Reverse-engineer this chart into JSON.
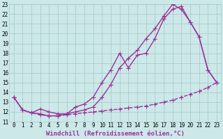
{
  "xlabel": "Windchill (Refroidissement éolien,°C)",
  "background_color": "#cce8e8",
  "grid_color": "#aacccc",
  "line_color": "#993399",
  "xlim": [
    -0.5,
    23.5
  ],
  "ylim": [
    11,
    23
  ],
  "yticks": [
    11,
    12,
    13,
    14,
    15,
    16,
    17,
    18,
    19,
    20,
    21,
    22,
    23
  ],
  "xticks": [
    0,
    1,
    2,
    3,
    4,
    5,
    6,
    7,
    8,
    9,
    10,
    11,
    12,
    13,
    14,
    15,
    16,
    17,
    18,
    19,
    20,
    21,
    22,
    23
  ],
  "line1_x": [
    0,
    1,
    2,
    3,
    4,
    5,
    6,
    7,
    8,
    9,
    10,
    11,
    12,
    13,
    14,
    15,
    16,
    17,
    18,
    19,
    20,
    21,
    22,
    23
  ],
  "line1_y": [
    13.5,
    12.2,
    11.9,
    11.7,
    11.6,
    11.6,
    11.7,
    11.8,
    11.9,
    12.0,
    12.1,
    12.2,
    12.3,
    12.4,
    12.5,
    12.6,
    12.8,
    13.0,
    13.2,
    13.5,
    13.8,
    14.1,
    14.5,
    15.0
  ],
  "line2_x": [
    0,
    1,
    2,
    3,
    4,
    5,
    6,
    7,
    8,
    9,
    10,
    11,
    12,
    13,
    14,
    15,
    16,
    17,
    18,
    19,
    20,
    21,
    22,
    23
  ],
  "line2_y": [
    13.5,
    12.2,
    11.9,
    12.3,
    12.0,
    11.8,
    11.8,
    12.5,
    12.8,
    13.5,
    15.0,
    16.3,
    18.0,
    16.5,
    17.8,
    18.0,
    19.5,
    21.5,
    22.5,
    22.8,
    21.2,
    19.7,
    16.3,
    15.0
  ],
  "line3_x": [
    0,
    1,
    2,
    3,
    4,
    5,
    6,
    7,
    8,
    9,
    10,
    11,
    12,
    13,
    14,
    15,
    16,
    17,
    18,
    19,
    20,
    21,
    22,
    23
  ],
  "line3_y": [
    13.5,
    12.2,
    11.9,
    11.8,
    11.6,
    11.6,
    11.8,
    12.0,
    12.2,
    12.5,
    13.5,
    14.8,
    16.5,
    17.5,
    18.3,
    19.5,
    20.5,
    21.8,
    23.0,
    22.5,
    21.2,
    19.7,
    16.3,
    15.0
  ],
  "marker": "+",
  "markersize": 4.5,
  "linewidth": 1.0,
  "tick_fontsize": 5.5,
  "xlabel_fontsize": 6.5
}
